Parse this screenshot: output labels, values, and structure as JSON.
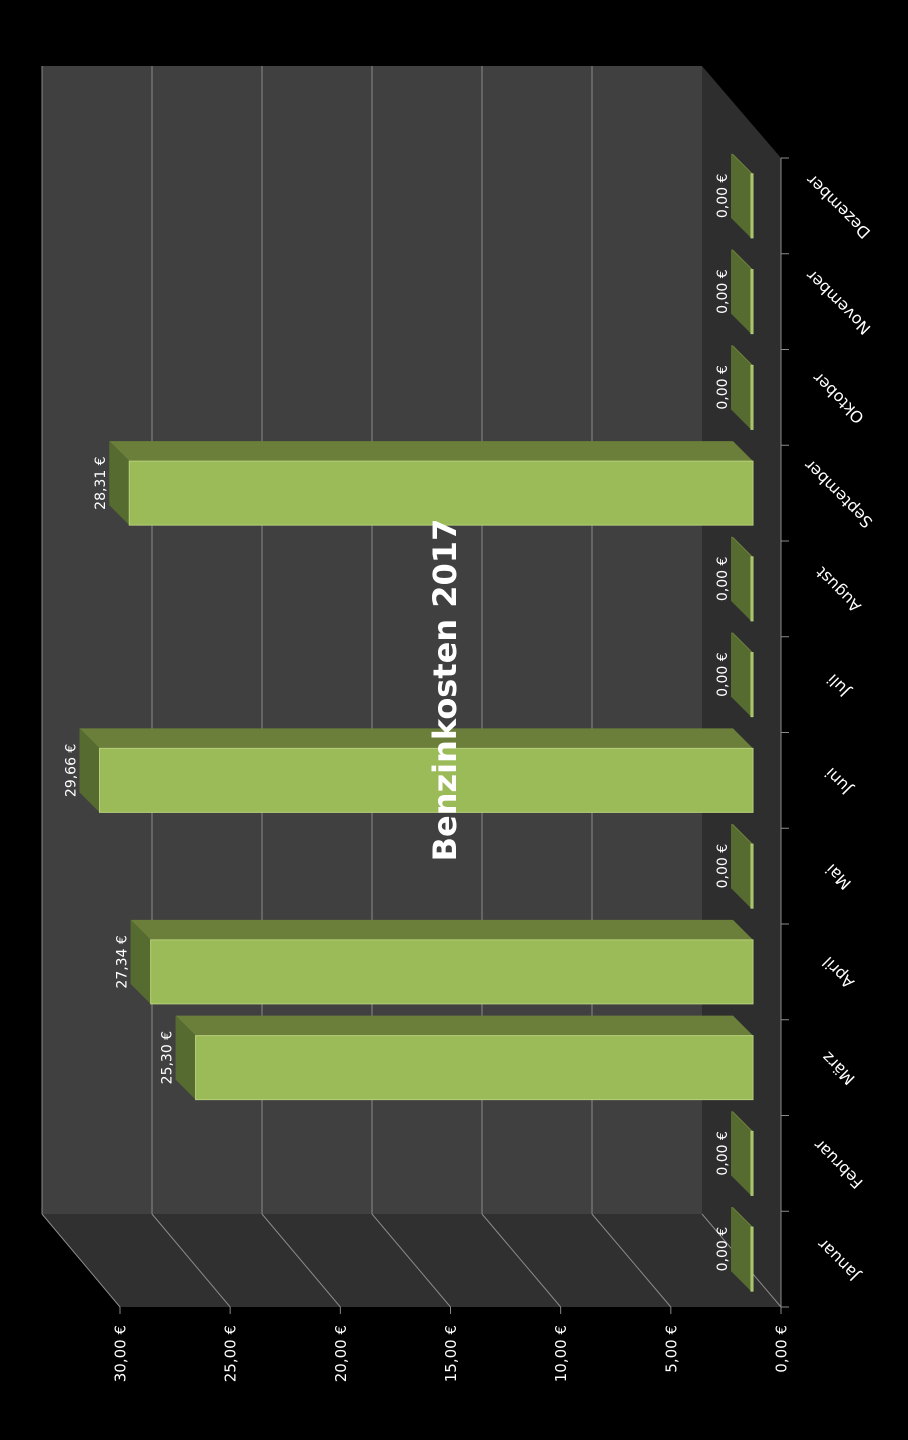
{
  "chart_data": {
    "type": "bar",
    "title": "Benzinkosten 2017",
    "categories": [
      "Januar",
      "Februar",
      "März",
      "April",
      "Mai",
      "Juni",
      "Juli",
      "August",
      "September",
      "Oktober",
      "November",
      "Dezember"
    ],
    "values": [
      0,
      0,
      25.3,
      27.34,
      0,
      29.66,
      0,
      0,
      28.31,
      0,
      0,
      0
    ],
    "value_labels": [
      "0,00 €",
      "0,00 €",
      "25,30 €",
      "27,34 €",
      "0,00 €",
      "29,66 €",
      "0,00 €",
      "0,00 €",
      "28,31 €",
      "0,00 €",
      "0,00 €",
      "0,00 €"
    ],
    "y_ticks": [
      0,
      5,
      10,
      15,
      20,
      25,
      30
    ],
    "y_tick_labels": [
      "0,00 €",
      "5,00 €",
      "10,00 €",
      "15,00 €",
      "20,00 €",
      "25,00 €",
      "30,00 €"
    ],
    "ylim": [
      0,
      30
    ],
    "xlabel": "",
    "ylabel": "",
    "grid": true,
    "legend": "none",
    "style": "3d-column",
    "orientation": "rotated-90-clockwise",
    "colors": {
      "background": "#000000",
      "back_wall": "#404040",
      "side_wall": "#303030",
      "floor": "#2e2e2e",
      "gridline": "#8a8a8a",
      "bar_front": "#9bbb59",
      "bar_top": "#6b7f3a",
      "bar_side": "#556b2f",
      "text": "#ffffff"
    }
  }
}
